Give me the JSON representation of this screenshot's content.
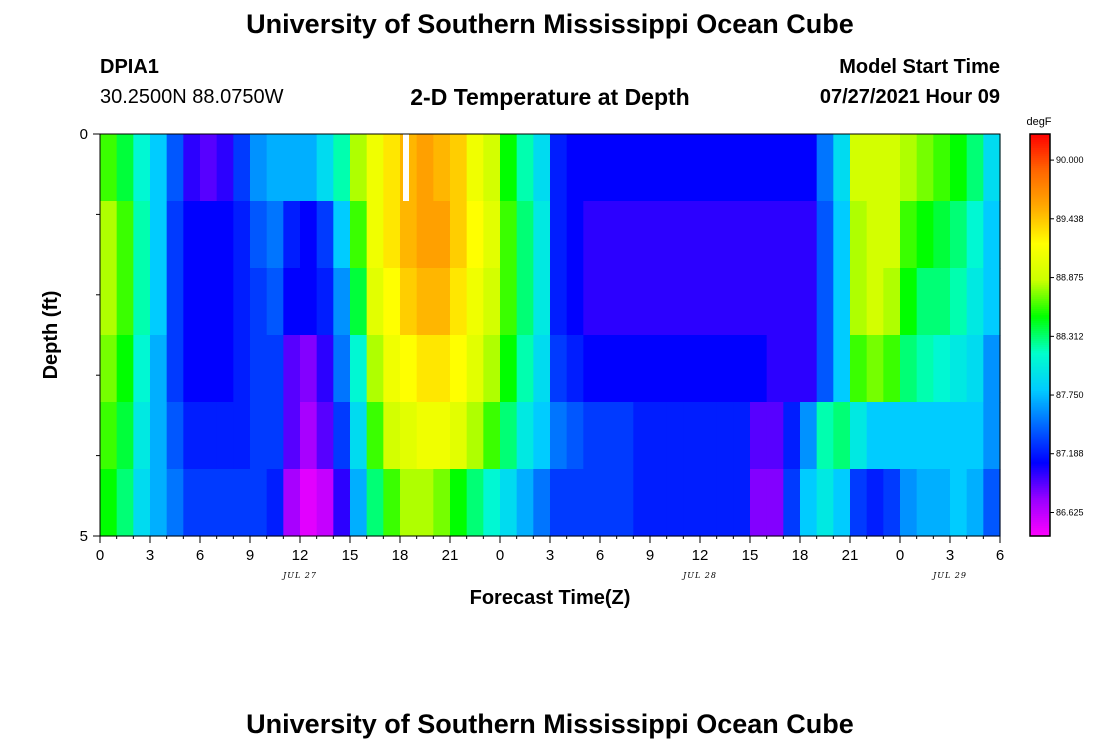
{
  "header": {
    "title": "University of Southern Mississippi Ocean Cube",
    "station_id": "DPIA1",
    "coordinates": "30.2500N  88.0750W",
    "plot_title": "2-D Temperature at Depth",
    "model_start_label": "Model Start Time",
    "model_start_value": "07/27/2021 Hour 09"
  },
  "footer": {
    "title": "University of Southern Mississippi Ocean Cube"
  },
  "chart_data": {
    "type": "heatmap",
    "title": "2-D Temperature at Depth",
    "xlabel": "Forecast Time(Z)",
    "ylabel": "Depth (ft)",
    "x_hours": [
      0,
      1,
      2,
      3,
      4,
      5,
      6,
      7,
      8,
      9,
      10,
      11,
      12,
      13,
      14,
      15,
      16,
      17,
      18,
      19,
      20,
      21,
      22,
      23,
      24,
      25,
      26,
      27,
      28,
      29,
      30,
      31,
      32,
      33,
      34,
      35,
      36,
      37,
      38,
      39,
      40,
      41,
      42,
      43,
      44,
      45,
      46,
      47,
      48,
      49,
      50,
      51,
      52,
      53
    ],
    "x_tick_labels": [
      "0",
      "3",
      "6",
      "9",
      "12",
      "15",
      "18",
      "21",
      "0",
      "3",
      "6",
      "9",
      "12",
      "15",
      "18",
      "21",
      "0",
      "3",
      "6"
    ],
    "x_tick_hours": [
      0,
      3,
      6,
      9,
      12,
      15,
      18,
      21,
      24,
      27,
      30,
      33,
      36,
      39,
      42,
      45,
      48,
      51,
      54
    ],
    "date_labels": [
      {
        "text": "JUL 27",
        "hour": 12
      },
      {
        "text": "JUL 28",
        "hour": 36
      },
      {
        "text": "JUL 29",
        "hour": 51
      }
    ],
    "y_tick_labels": [
      "0",
      "5"
    ],
    "y_range": [
      0,
      5
    ],
    "depth_levels": [
      0.25,
      1.0,
      2.0,
      3.0,
      4.0,
      4.75
    ],
    "colorbar": {
      "unit": "degF",
      "min": 86.4,
      "max": 90.25,
      "labels": [
        "90.000",
        "89.438",
        "88.875",
        "88.312",
        "87.750",
        "87.188",
        "86.625"
      ],
      "label_values": [
        90.0,
        89.438,
        88.875,
        88.312,
        87.75,
        87.188,
        86.625
      ],
      "colors": [
        "#ff00ff",
        "#9900ff",
        "#0000ff",
        "#0066ff",
        "#00ccff",
        "#00ffcc",
        "#00ff00",
        "#ccff00",
        "#ffff00",
        "#ffaa00",
        "#ff6600",
        "#ff0000"
      ]
    },
    "missing": [
      {
        "hour": 18,
        "depth_index": 0
      }
    ],
    "values": [
      [
        88.6,
        88.4,
        88.1,
        87.8,
        87.4,
        87.0,
        86.9,
        87.0,
        87.3,
        87.6,
        87.7,
        87.7,
        87.7,
        87.9,
        88.2,
        88.8,
        89.1,
        89.3,
        89.5,
        89.6,
        89.5,
        89.4,
        89.1,
        88.9,
        88.5,
        88.2,
        87.9,
        87.2,
        87.1,
        87.1,
        87.1,
        87.1,
        87.1,
        87.1,
        87.1,
        87.1,
        87.1,
        87.1,
        87.1,
        87.1,
        87.1,
        87.1,
        87.1,
        87.5,
        87.9,
        88.9,
        88.9,
        88.9,
        88.8,
        88.7,
        88.6,
        88.5,
        88.3,
        87.9
      ],
      [
        88.8,
        88.6,
        88.2,
        87.8,
        87.3,
        87.1,
        87.1,
        87.1,
        87.2,
        87.4,
        87.5,
        87.2,
        87.1,
        87.3,
        87.8,
        88.6,
        89.1,
        89.3,
        89.5,
        89.6,
        89.6,
        89.4,
        89.2,
        89.0,
        88.6,
        88.3,
        88.0,
        87.2,
        87.1,
        87.0,
        87.0,
        87.0,
        87.0,
        87.0,
        87.0,
        87.0,
        87.0,
        87.0,
        87.0,
        87.0,
        87.0,
        87.0,
        87.0,
        87.4,
        87.8,
        88.8,
        88.9,
        88.9,
        88.6,
        88.5,
        88.4,
        88.3,
        88.1,
        87.8
      ],
      [
        88.8,
        88.6,
        88.2,
        87.8,
        87.3,
        87.1,
        87.1,
        87.1,
        87.2,
        87.3,
        87.4,
        87.1,
        87.1,
        87.2,
        87.6,
        88.4,
        89.0,
        89.2,
        89.4,
        89.5,
        89.5,
        89.3,
        89.1,
        88.9,
        88.6,
        88.3,
        88.0,
        87.2,
        87.1,
        87.0,
        87.0,
        87.0,
        87.0,
        87.0,
        87.0,
        87.0,
        87.0,
        87.0,
        87.0,
        87.0,
        87.0,
        87.0,
        87.0,
        87.4,
        87.8,
        88.8,
        88.9,
        88.8,
        88.5,
        88.3,
        88.3,
        88.2,
        88.0,
        87.8
      ],
      [
        88.7,
        88.5,
        88.1,
        87.7,
        87.3,
        87.1,
        87.1,
        87.1,
        87.2,
        87.3,
        87.3,
        86.9,
        86.8,
        87.0,
        87.5,
        88.1,
        88.8,
        89.1,
        89.2,
        89.3,
        89.3,
        89.2,
        89.0,
        88.8,
        88.5,
        88.2,
        87.9,
        87.3,
        87.2,
        87.1,
        87.1,
        87.1,
        87.1,
        87.1,
        87.1,
        87.1,
        87.1,
        87.1,
        87.1,
        87.1,
        87.0,
        87.0,
        87.0,
        87.4,
        87.8,
        88.6,
        88.7,
        88.6,
        88.3,
        88.2,
        88.1,
        88.0,
        87.9,
        87.6
      ],
      [
        88.6,
        88.4,
        88.0,
        87.7,
        87.4,
        87.2,
        87.2,
        87.2,
        87.2,
        87.3,
        87.3,
        86.9,
        86.7,
        86.9,
        87.3,
        87.9,
        88.6,
        88.9,
        89.0,
        89.1,
        89.1,
        89.0,
        88.8,
        88.6,
        88.3,
        88.0,
        87.8,
        87.5,
        87.4,
        87.3,
        87.3,
        87.3,
        87.2,
        87.2,
        87.2,
        87.2,
        87.2,
        87.2,
        87.2,
        86.9,
        86.9,
        87.2,
        87.6,
        88.2,
        88.3,
        88.0,
        87.8,
        87.8,
        87.8,
        87.8,
        87.8,
        87.8,
        87.8,
        87.6
      ],
      [
        88.5,
        88.3,
        87.9,
        87.7,
        87.5,
        87.3,
        87.3,
        87.3,
        87.3,
        87.3,
        87.2,
        86.7,
        86.5,
        86.6,
        87.0,
        87.7,
        88.3,
        88.6,
        88.8,
        88.8,
        88.7,
        88.5,
        88.3,
        88.1,
        87.9,
        87.7,
        87.5,
        87.3,
        87.3,
        87.3,
        87.3,
        87.3,
        87.2,
        87.2,
        87.2,
        87.2,
        87.2,
        87.2,
        87.2,
        86.8,
        86.8,
        87.3,
        87.8,
        88.0,
        87.8,
        87.3,
        87.2,
        87.3,
        87.6,
        87.7,
        87.7,
        87.8,
        87.7,
        87.4
      ]
    ]
  }
}
